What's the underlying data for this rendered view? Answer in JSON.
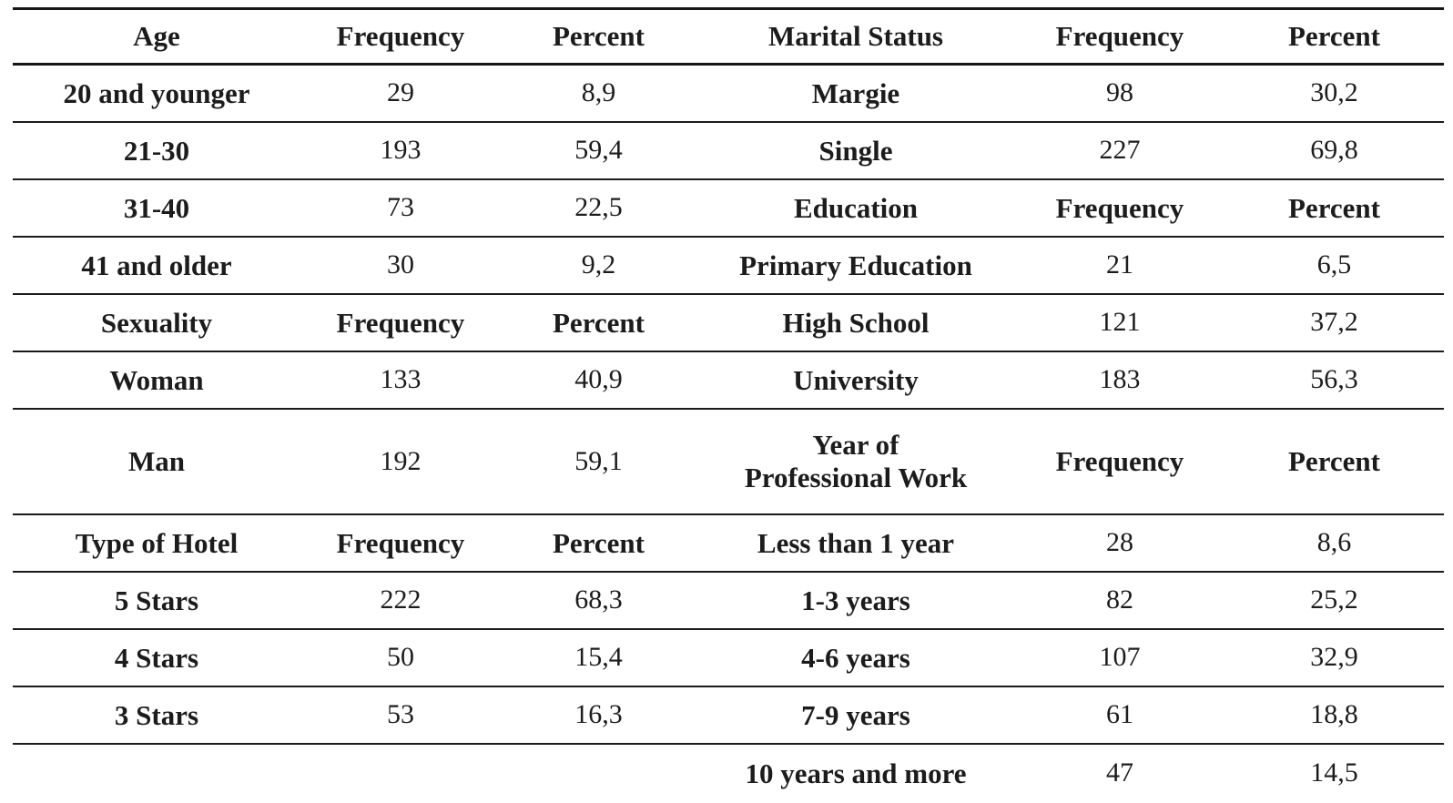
{
  "meta": {
    "kind": "paper-demographics-frequency-table",
    "text_color": "#1c1c1c",
    "rule_color": "#1a1a1a",
    "background": "#ffffff",
    "decimal_separator": ","
  },
  "table": {
    "left_header": [
      "Age",
      "Frequency",
      "Percent"
    ],
    "right_header": [
      "Marital Status",
      "Frequency",
      "Percent"
    ],
    "rows": [
      {
        "type": "header",
        "cells": [
          {
            "text": "Age",
            "bold": true
          },
          {
            "text": "Frequency",
            "bold": true
          },
          {
            "text": "Percent",
            "bold": true
          },
          {
            "text": "Marital Status",
            "bold": true
          },
          {
            "text": "Frequency",
            "bold": true
          },
          {
            "text": "Percent",
            "bold": true
          }
        ]
      },
      {
        "cells": [
          {
            "text": "20 and younger",
            "bold": true
          },
          {
            "text": "29"
          },
          {
            "text": "8,9"
          },
          {
            "text": "Margie",
            "bold": true
          },
          {
            "text": "98"
          },
          {
            "text": "30,2"
          }
        ]
      },
      {
        "cells": [
          {
            "text": "21-30",
            "bold": true
          },
          {
            "text": "193"
          },
          {
            "text": "59,4"
          },
          {
            "text": "Single",
            "bold": true
          },
          {
            "text": "227"
          },
          {
            "text": "69,8"
          }
        ]
      },
      {
        "cells": [
          {
            "text": "31-40",
            "bold": true
          },
          {
            "text": "73"
          },
          {
            "text": "22,5"
          },
          {
            "text": "Education",
            "bold": true
          },
          {
            "text": "Frequency",
            "bold": true
          },
          {
            "text": "Percent",
            "bold": true
          }
        ]
      },
      {
        "cells": [
          {
            "text": "41 and older",
            "bold": true
          },
          {
            "text": "30"
          },
          {
            "text": "9,2"
          },
          {
            "text": "Primary Education",
            "bold": true
          },
          {
            "text": "21"
          },
          {
            "text": "6,5"
          }
        ]
      },
      {
        "cells": [
          {
            "text": "Sexuality",
            "bold": true
          },
          {
            "text": "Frequency",
            "bold": true
          },
          {
            "text": "Percent",
            "bold": true
          },
          {
            "text": "High School",
            "bold": true
          },
          {
            "text": "121"
          },
          {
            "text": "37,2"
          }
        ]
      },
      {
        "cells": [
          {
            "text": "Woman",
            "bold": true
          },
          {
            "text": "133"
          },
          {
            "text": "40,9"
          },
          {
            "text": "University",
            "bold": true
          },
          {
            "text": "183"
          },
          {
            "text": "56,3"
          }
        ]
      },
      {
        "type": "tall",
        "cells": [
          {
            "text": "Man",
            "bold": true
          },
          {
            "text": "192"
          },
          {
            "text": "59,1"
          },
          {
            "text": "Year of\nProfessional Work",
            "bold": true
          },
          {
            "text": "Frequency",
            "bold": true
          },
          {
            "text": "Percent",
            "bold": true
          }
        ]
      },
      {
        "cells": [
          {
            "text": "Type of Hotel",
            "bold": true
          },
          {
            "text": "Frequency",
            "bold": true
          },
          {
            "text": "Percent",
            "bold": true
          },
          {
            "text": "Less than 1 year",
            "bold": true
          },
          {
            "text": "28"
          },
          {
            "text": "8,6"
          }
        ]
      },
      {
        "cells": [
          {
            "text": "5 Stars",
            "bold": true
          },
          {
            "text": "222"
          },
          {
            "text": "68,3"
          },
          {
            "text": "1-3 years",
            "bold": true
          },
          {
            "text": "82"
          },
          {
            "text": "25,2"
          }
        ]
      },
      {
        "cells": [
          {
            "text": "4 Stars",
            "bold": true
          },
          {
            "text": "50"
          },
          {
            "text": "15,4"
          },
          {
            "text": "4-6 years",
            "bold": true
          },
          {
            "text": "107"
          },
          {
            "text": "32,9"
          }
        ]
      },
      {
        "cells": [
          {
            "text": "3 Stars",
            "bold": true
          },
          {
            "text": "53"
          },
          {
            "text": "16,3"
          },
          {
            "text": "7-9 years",
            "bold": true
          },
          {
            "text": "61"
          },
          {
            "text": "18,8"
          }
        ]
      },
      {
        "cells": [
          {
            "text": ""
          },
          {
            "text": ""
          },
          {
            "text": ""
          },
          {
            "text": "10 years and more",
            "bold": true
          },
          {
            "text": "47"
          },
          {
            "text": "14,5"
          }
        ]
      }
    ]
  }
}
